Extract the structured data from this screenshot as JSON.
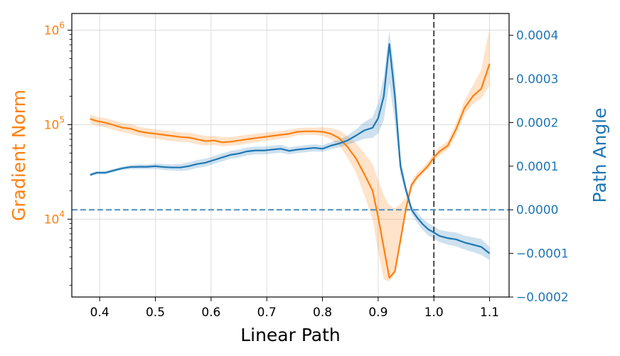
{
  "chart_data": {
    "type": "line",
    "xlabel": "Linear Path",
    "ylabel_left": "Gradient Norm",
    "ylabel_right": "Path Angle",
    "xlim": [
      0.35,
      1.135
    ],
    "ylim_left": [
      1500,
      1500000
    ],
    "ylim_right": [
      -0.0002,
      0.00045
    ],
    "left_scale": "log",
    "grid": true,
    "x_ticks": [
      0.4,
      0.5,
      0.6,
      0.7,
      0.8,
      0.9,
      1.0,
      1.1
    ],
    "x_tick_labels": [
      "0.4",
      "0.5",
      "0.6",
      "0.7",
      "0.8",
      "0.9",
      "1.0",
      "1.1"
    ],
    "y_left_ticks": [
      10000,
      100000,
      1000000
    ],
    "y_left_tick_labels": [
      {
        "base": "10",
        "exp": "4"
      },
      {
        "base": "10",
        "exp": "5"
      },
      {
        "base": "10",
        "exp": "6"
      }
    ],
    "y_right_ticks": [
      -0.0002,
      -0.0001,
      0.0,
      0.0001,
      0.0002,
      0.0003,
      0.0004
    ],
    "y_right_tick_labels": [
      "−0.0002",
      "−0.0001",
      "0.0000",
      "0.0001",
      "0.0002",
      "0.0003",
      "0.0004"
    ],
    "colors": {
      "gradient": "#ff7f0e",
      "angle": "#1f77b4",
      "reference_vertical": "#444444",
      "reference_horizontal": "#4a90c4"
    },
    "reference_lines": {
      "vertical_x": 1.0,
      "horizontal_angle": 0.0
    },
    "series": [
      {
        "axis": "left",
        "x": [
          0.383,
          0.395,
          0.41,
          0.425,
          0.44,
          0.455,
          0.47,
          0.485,
          0.5,
          0.515,
          0.53,
          0.545,
          0.56,
          0.575,
          0.59,
          0.605,
          0.62,
          0.635,
          0.65,
          0.665,
          0.68,
          0.695,
          0.71,
          0.725,
          0.74,
          0.755,
          0.77,
          0.785,
          0.8,
          0.815,
          0.83,
          0.845,
          0.86,
          0.875,
          0.89,
          0.9,
          0.91,
          0.92,
          0.93,
          0.94,
          0.95,
          0.96,
          0.97,
          0.98,
          0.99,
          1.0,
          1.01,
          1.025,
          1.04,
          1.055,
          1.07,
          1.085,
          1.1
        ],
        "values": [
          115000,
          109000,
          105000,
          99000,
          93000,
          91000,
          85000,
          82000,
          80000,
          78000,
          76000,
          74000,
          73000,
          70000,
          67000,
          68000,
          65000,
          66000,
          68000,
          70000,
          72000,
          74000,
          76000,
          78000,
          80000,
          84000,
          85000,
          85000,
          84000,
          80000,
          72000,
          58000,
          44000,
          30000,
          20000,
          10500,
          5000,
          2400,
          2800,
          6000,
          13000,
          23000,
          28000,
          32000,
          37000,
          45000,
          52000,
          60000,
          90000,
          150000,
          200000,
          240000,
          440000
        ],
        "band_low": [
          103000,
          98000,
          94000,
          88000,
          83000,
          80000,
          76000,
          73000,
          71000,
          69000,
          67000,
          66000,
          65000,
          62000,
          60000,
          61000,
          59000,
          60000,
          61000,
          63000,
          65000,
          67000,
          69000,
          71000,
          73000,
          77000,
          78000,
          78000,
          76000,
          70000,
          60000,
          45000,
          31000,
          18000,
          10000,
          4500,
          2300,
          2200,
          2600,
          5200,
          11500,
          21000,
          26000,
          30000,
          34000,
          41000,
          47000,
          54000,
          78000,
          128000,
          165000,
          190000,
          260000
        ],
        "band_high": [
          128000,
          121000,
          117000,
          111000,
          104000,
          102000,
          95000,
          92000,
          89000,
          87000,
          85000,
          83000,
          82000,
          79000,
          76000,
          76000,
          74000,
          74000,
          76000,
          78000,
          80000,
          82000,
          84000,
          86000,
          88000,
          92000,
          93000,
          93000,
          94000,
          92000,
          87000,
          76000,
          64000,
          50000,
          38000,
          26000,
          18000,
          14000,
          13000,
          14500,
          17000,
          25500,
          31000,
          35000,
          41000,
          50000,
          58000,
          67000,
          104000,
          180000,
          260000,
          380000,
          1050000
        ]
      },
      {
        "axis": "right",
        "x": [
          0.383,
          0.395,
          0.41,
          0.425,
          0.44,
          0.455,
          0.47,
          0.485,
          0.5,
          0.515,
          0.53,
          0.545,
          0.56,
          0.575,
          0.59,
          0.605,
          0.62,
          0.635,
          0.65,
          0.665,
          0.68,
          0.695,
          0.71,
          0.725,
          0.74,
          0.755,
          0.77,
          0.785,
          0.8,
          0.815,
          0.83,
          0.845,
          0.86,
          0.875,
          0.89,
          0.9,
          0.91,
          0.92,
          0.93,
          0.94,
          0.95,
          0.96,
          0.97,
          0.98,
          0.99,
          1.0,
          1.01,
          1.025,
          1.04,
          1.055,
          1.07,
          1.085,
          1.1
        ],
        "values": [
          8e-05,
          8.5e-05,
          8.5e-05,
          9e-05,
          9.5e-05,
          9.8e-05,
          9.85e-05,
          9.85e-05,
          0.0001,
          9.8e-05,
          9.7e-05,
          9.7e-05,
          0.0001,
          0.000105,
          0.000108,
          0.000114,
          0.00012,
          0.000126,
          0.000129,
          0.000134,
          0.000136,
          0.000136,
          0.000138,
          0.00014,
          0.000135,
          0.000138,
          0.00014,
          0.000142,
          0.00014,
          0.000147,
          0.000152,
          0.000159,
          0.00017,
          0.000182,
          0.000188,
          0.00021,
          0.00026,
          0.00038,
          0.00026,
          0.0001,
          4.5e-05,
          0.0,
          -1.8e-05,
          -3.3e-05,
          -4.5e-05,
          -5.2e-05,
          -6e-05,
          -6.5e-05,
          -6.8e-05,
          -7.5e-05,
          -8e-05,
          -8.5e-05,
          -0.0001
        ],
        "band_low": [
          7.6e-05,
          8.1e-05,
          8.1e-05,
          8.6e-05,
          9.1e-05,
          9.3e-05,
          9.3e-05,
          9.3e-05,
          9.4e-05,
          9.1e-05,
          9e-05,
          8.9e-05,
          9.1e-05,
          9.6e-05,
          9.9e-05,
          0.000105,
          0.000111,
          0.000117,
          0.00012,
          0.000125,
          0.000127,
          0.000127,
          0.000129,
          0.000131,
          0.000127,
          0.00013,
          0.000132,
          0.000134,
          0.000133,
          0.000139,
          0.000143,
          0.000149,
          0.000156,
          0.000163,
          0.000165,
          0.000175,
          0.000205,
          0.00029,
          0.0002,
          8e-05,
          3.5e-05,
          -1e-05,
          -3e-05,
          -4.6e-05,
          -5.9e-05,
          -6.6e-05,
          -7.4e-05,
          -8e-05,
          -8.4e-05,
          -9.1e-05,
          -9.7e-05,
          -0.000103,
          -0.000115
        ],
        "band_high": [
          8.4e-05,
          8.9e-05,
          8.9e-05,
          9.4e-05,
          9.9e-05,
          0.000103,
          0.000104,
          0.000104,
          0.000106,
          0.000105,
          0.000104,
          0.000105,
          0.000109,
          0.000114,
          0.000117,
          0.000123,
          0.000129,
          0.000135,
          0.000138,
          0.000143,
          0.000145,
          0.000145,
          0.000147,
          0.000149,
          0.000143,
          0.000146,
          0.000148,
          0.00015,
          0.000148,
          0.000155,
          0.000161,
          0.00017,
          0.000184,
          0.000201,
          0.000212,
          0.000245,
          0.000305,
          0.00041,
          0.00031,
          0.00012,
          5.5e-05,
          1e-05,
          -6e-06,
          -2e-05,
          -3.1e-05,
          -3.8e-05,
          -4.6e-05,
          -5e-05,
          -5.2e-05,
          -5.9e-05,
          -6.3e-05,
          -6.7e-05,
          -8.5e-05
        ]
      }
    ]
  }
}
